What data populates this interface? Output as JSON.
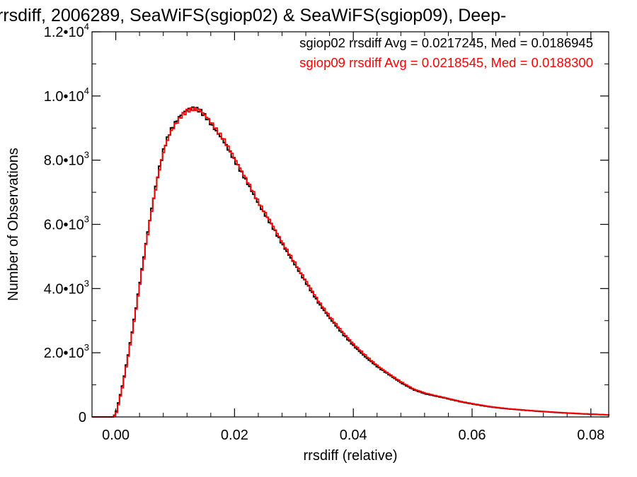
{
  "chart_data": {
    "type": "line",
    "title": "rrsdiff, 2006289, SeaWiFS(sgiop02) & SeaWiFS(sgiop09), Deep-",
    "xlabel": "rrsdiff (relative)",
    "ylabel": "Number of Observations",
    "xlim": [
      -0.004,
      0.083
    ],
    "ylim": [
      0,
      12000
    ],
    "xticks": [
      0.0,
      0.02,
      0.04,
      0.06,
      0.08
    ],
    "xtick_labels": [
      "0.00",
      "0.02",
      "0.04",
      "0.06",
      "0.08"
    ],
    "yticks": [
      0,
      2000,
      4000,
      6000,
      8000,
      10000,
      12000
    ],
    "ytick_labels": [
      {
        "mant": "0",
        "exp": ""
      },
      {
        "mant": "2.0•10",
        "exp": "3"
      },
      {
        "mant": "4.0•10",
        "exp": "3"
      },
      {
        "mant": "6.0•10",
        "exp": "3"
      },
      {
        "mant": "8.0•10",
        "exp": "3"
      },
      {
        "mant": "1.0•10",
        "exp": "4"
      },
      {
        "mant": "1.2•10",
        "exp": "4"
      }
    ],
    "grid": false,
    "legend_position": "top-right",
    "legend": [
      "sgiop02 rrsdiff Avg = 0.0217245, Med = 0.0186945",
      "sgiop09 rrsdiff Avg = 0.0218545, Med = 0.0188300"
    ],
    "series": [
      {
        "color": "#000000",
        "step": true,
        "x": [
          -0.004,
          -0.0005,
          0.0,
          0.001,
          0.002,
          0.003,
          0.004,
          0.005,
          0.006,
          0.007,
          0.008,
          0.009,
          0.01,
          0.011,
          0.012,
          0.013,
          0.014,
          0.015,
          0.016,
          0.018,
          0.02,
          0.022,
          0.024,
          0.026,
          0.028,
          0.03,
          0.032,
          0.034,
          0.036,
          0.038,
          0.04,
          0.042,
          0.044,
          0.046,
          0.048,
          0.05,
          0.052,
          0.055,
          0.058,
          0.06,
          0.063,
          0.066,
          0.07,
          0.074,
          0.078,
          0.082,
          0.083
        ],
        "y": [
          0,
          0,
          200,
          1000,
          2000,
          3100,
          4300,
          5500,
          6600,
          7600,
          8400,
          8900,
          9200,
          9450,
          9580,
          9620,
          9550,
          9350,
          9100,
          8600,
          7950,
          7300,
          6600,
          6000,
          5350,
          4750,
          4150,
          3550,
          3050,
          2600,
          2200,
          1850,
          1550,
          1300,
          1050,
          850,
          720,
          600,
          470,
          400,
          310,
          250,
          190,
          140,
          100,
          70,
          60
        ]
      },
      {
        "color": "#ff0000",
        "step": true,
        "x": [
          -0.004,
          -0.0005,
          0.0,
          0.001,
          0.002,
          0.003,
          0.004,
          0.005,
          0.006,
          0.007,
          0.008,
          0.009,
          0.01,
          0.011,
          0.012,
          0.013,
          0.014,
          0.015,
          0.016,
          0.018,
          0.02,
          0.022,
          0.024,
          0.026,
          0.028,
          0.03,
          0.032,
          0.034,
          0.036,
          0.038,
          0.04,
          0.042,
          0.044,
          0.046,
          0.048,
          0.05,
          0.052,
          0.055,
          0.058,
          0.06,
          0.063,
          0.066,
          0.07,
          0.074,
          0.078,
          0.082,
          0.083
        ],
        "y": [
          0,
          0,
          150,
          950,
          1950,
          3050,
          4250,
          5450,
          6550,
          7550,
          8350,
          8850,
          9150,
          9400,
          9550,
          9600,
          9560,
          9380,
          9150,
          8650,
          8000,
          7350,
          6650,
          6050,
          5400,
          4800,
          4200,
          3600,
          3100,
          2650,
          2250,
          1900,
          1580,
          1320,
          1080,
          870,
          740,
          610,
          480,
          410,
          320,
          255,
          195,
          145,
          105,
          72,
          62
        ]
      }
    ]
  }
}
